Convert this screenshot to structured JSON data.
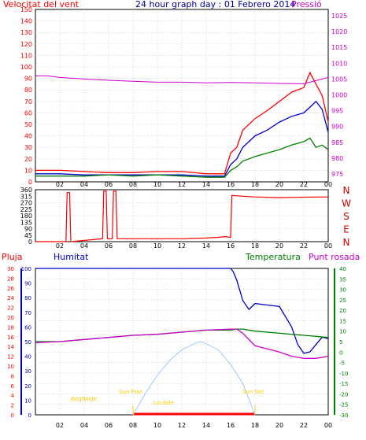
{
  "header": {
    "left_title": "Velocitat del vent",
    "center_title": "24 hour graph day : 01 Febrero 2014",
    "right_title": "Pressió"
  },
  "colors": {
    "wind_speed": "#ff0000",
    "wind_avg": "#0000cc",
    "wind_other": "#008000",
    "pressure": "#cc00cc",
    "rain": "#ff0000",
    "humidity": "#0000cc",
    "temperature": "#008000",
    "dewpoint": "#cc00cc",
    "sun": "#a0c8ff",
    "twilight": "#ffcc00",
    "grid": "#c0c0c0"
  },
  "x_ticks": [
    "02",
    "04",
    "06",
    "08",
    "10",
    "12",
    "14",
    "16",
    "18",
    "20",
    "22",
    "00"
  ],
  "chart_data": [
    {
      "type": "line",
      "name": "wind_pressure",
      "x_unit": "hour",
      "left_axis": {
        "label": "Velocitat del vent",
        "ticks": [
          "0",
          "10",
          "20",
          "30",
          "40",
          "50",
          "60",
          "70",
          "80",
          "90",
          "100",
          "110",
          "120",
          "130",
          "140",
          "150"
        ],
        "range": [
          0,
          150
        ]
      },
      "right_axis": {
        "label": "Pressió",
        "ticks": [
          "975",
          "980",
          "985",
          "990",
          "995",
          "1000",
          "1005",
          "1010",
          "1015",
          "1020",
          "1025"
        ],
        "range": [
          972.5,
          1027
        ]
      },
      "series": [
        {
          "role": "wind_gust",
          "color_key": "wind_speed",
          "axis": "left",
          "x": [
            0,
            2,
            4,
            6,
            8,
            10,
            12,
            14,
            15.5,
            16,
            16.5,
            17,
            18,
            19,
            20,
            21,
            22,
            22.5,
            23,
            23.5,
            24
          ],
          "y": [
            10,
            10,
            9,
            8,
            8,
            9,
            9,
            7,
            7,
            25,
            30,
            45,
            55,
            62,
            70,
            78,
            82,
            95,
            85,
            75,
            52
          ]
        },
        {
          "role": "wind_avg",
          "color_key": "wind_avg",
          "axis": "left",
          "x": [
            0,
            2,
            4,
            6,
            8,
            10,
            12,
            14,
            15.5,
            16,
            16.5,
            17,
            18,
            19,
            20,
            21,
            22,
            22.5,
            23,
            23.5,
            24
          ],
          "y": [
            7,
            7,
            6,
            6,
            6,
            6,
            6,
            5,
            5,
            15,
            20,
            30,
            40,
            45,
            52,
            57,
            60,
            65,
            70,
            63,
            43
          ]
        },
        {
          "role": "wind_other",
          "color_key": "wind_other",
          "axis": "left",
          "x": [
            0,
            2,
            4,
            6,
            8,
            10,
            12,
            14,
            15.5,
            16,
            16.5,
            17,
            18,
            19,
            20,
            21,
            22,
            22.5,
            23,
            23.5,
            24
          ],
          "y": [
            5,
            5,
            5,
            6,
            5,
            6,
            5,
            4,
            4,
            10,
            13,
            18,
            22,
            25,
            28,
            32,
            35,
            38,
            30,
            32,
            28
          ]
        },
        {
          "role": "pressure",
          "color_key": "pressure",
          "axis": "right",
          "x": [
            0,
            1,
            2,
            4,
            6,
            8,
            10,
            12,
            14,
            16,
            18,
            20,
            22,
            23,
            24
          ],
          "y": [
            1006,
            1006,
            1005.5,
            1005,
            1004.6,
            1004.3,
            1004,
            1004,
            1003.8,
            1003.9,
            1003.8,
            1003.6,
            1003.5,
            1004.5,
            1005.5
          ]
        }
      ]
    },
    {
      "type": "line",
      "name": "wind_direction",
      "right_labels": [
        "N",
        "W",
        "S",
        "E",
        "N"
      ],
      "left_axis": {
        "ticks": [
          "0",
          "45",
          "90",
          "135",
          "180",
          "225",
          "270",
          "315",
          "360"
        ],
        "range": [
          0,
          360
        ]
      },
      "series": [
        {
          "role": "direction",
          "color_key": "wind_speed",
          "x": [
            0,
            2.5,
            2.6,
            2.8,
            2.9,
            5.5,
            5.6,
            5.8,
            5.9,
            6.3,
            6.4,
            6.6,
            6.7,
            8,
            10,
            12,
            14,
            15,
            15.5,
            16,
            16.1,
            17,
            18,
            20,
            22,
            24
          ],
          "y": [
            0,
            0,
            340,
            340,
            0,
            20,
            350,
            350,
            20,
            20,
            350,
            350,
            20,
            20,
            20,
            20,
            25,
            30,
            35,
            30,
            320,
            315,
            310,
            305,
            308,
            310
          ]
        }
      ]
    },
    {
      "type": "line",
      "name": "humidity_temperature",
      "header_labels": {
        "rain": "Pluja",
        "humidity": "Humitat",
        "temperature": "Temperatura",
        "dewpoint": "Punt rosada"
      },
      "left_axis_rain": {
        "ticks": [
          "0",
          "2",
          "4",
          "6",
          "8",
          "10",
          "12",
          "14",
          "16",
          "18",
          "20",
          "22",
          "24",
          "26",
          "28",
          "30"
        ],
        "range": [
          0,
          30
        ]
      },
      "left_axis_humidity": {
        "ticks": [
          "0",
          "10",
          "20",
          "30",
          "40",
          "50",
          "60",
          "70",
          "80",
          "90",
          "100"
        ],
        "range": [
          0,
          100
        ]
      },
      "right_axis_temp": {
        "ticks": [
          "40",
          "35",
          "30",
          "25",
          "20",
          "15",
          "10",
          "5",
          "0",
          "-5",
          "-10",
          "-15",
          "-20",
          "-25",
          "-30"
        ],
        "range": [
          -30,
          40
        ]
      },
      "sun_labels": {
        "begin": "BegTwide",
        "sunrise": "Sun Rise",
        "latitude": "Loutide",
        "sunset": "Sun Set"
      },
      "series": [
        {
          "role": "humidity",
          "color_key": "humidity",
          "axis": "humidity",
          "x": [
            0,
            4,
            8,
            12,
            14,
            16,
            16.2,
            16.5,
            17,
            17.5,
            18,
            19,
            20,
            21,
            21.5,
            22,
            22.5,
            23,
            23.5,
            24
          ],
          "y": [
            100,
            100,
            100,
            100,
            100,
            100,
            98,
            92,
            78,
            72,
            76,
            75,
            74,
            60,
            48,
            42,
            43,
            48,
            53,
            52
          ]
        },
        {
          "role": "temperature",
          "color_key": "temperature",
          "axis": "temp",
          "x": [
            0,
            2,
            4,
            6,
            8,
            10,
            12,
            14,
            16,
            16.5,
            17,
            18,
            20,
            22,
            24
          ],
          "y": [
            5,
            5,
            6,
            7,
            8,
            8.5,
            9.5,
            10.5,
            10.5,
            11,
            11,
            10,
            9,
            8,
            7
          ]
        },
        {
          "role": "dewpoint",
          "color_key": "dewpoint",
          "axis": "temp",
          "x": [
            0,
            2,
            4,
            6,
            8,
            10,
            12,
            14,
            16,
            16.5,
            17,
            18,
            20,
            21,
            22,
            23,
            24
          ],
          "y": [
            4.5,
            5,
            6,
            7,
            8,
            8.5,
            9.5,
            10.5,
            11,
            11,
            9,
            3,
            0,
            -2,
            -3,
            -3,
            -2
          ]
        },
        {
          "role": "sun_elevation",
          "color_key": "sun",
          "axis": "temp",
          "x": [
            8,
            9,
            10,
            11,
            12,
            13,
            13.5,
            14,
            15,
            16,
            17,
            18
          ],
          "y": [
            -30,
            -20,
            -11,
            -4,
            1,
            4,
            5,
            4,
            1,
            -6,
            -15,
            -30
          ]
        }
      ]
    }
  ]
}
